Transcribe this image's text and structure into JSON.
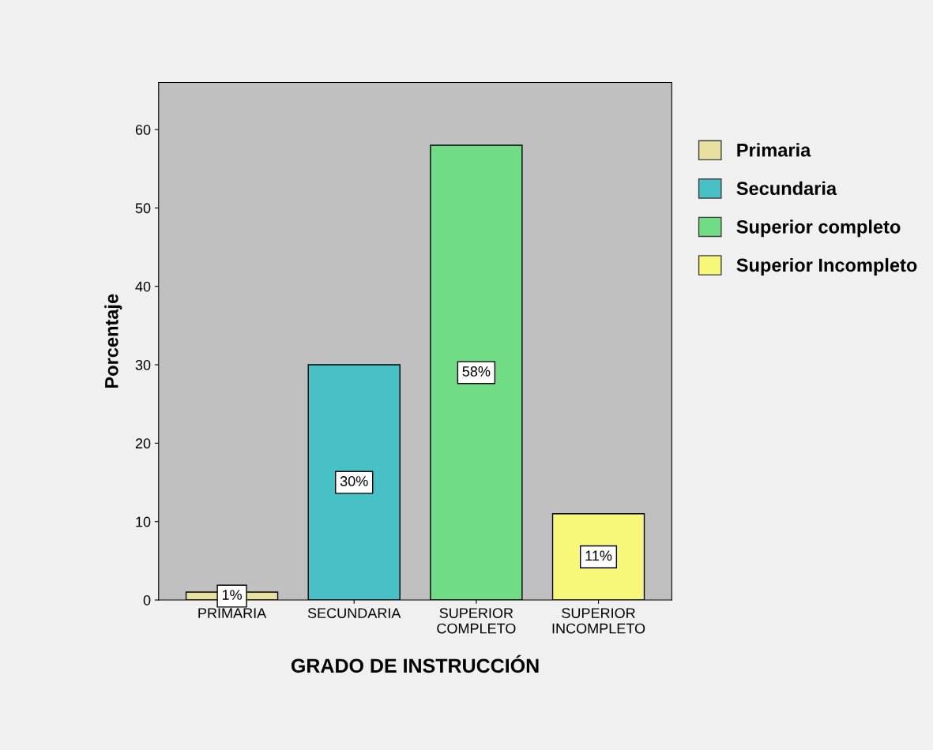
{
  "chart_data": {
    "type": "bar",
    "xlabel": "GRADO DE INSTRUCCIÓN",
    "ylabel": "Porcentaje",
    "categories": [
      "PRIMARIA",
      "SECUNDARIA",
      "SUPERIOR\nCOMPLETO",
      "SUPERIOR\nINCOMPLETO"
    ],
    "series": [
      {
        "name": "Primaria",
        "color": "#e8e0a0",
        "values": [
          1,
          null,
          null,
          null
        ],
        "value_labels": [
          "1%",
          null,
          null,
          null
        ]
      },
      {
        "name": "Secundaria",
        "color": "#47c1c6",
        "values": [
          null,
          30,
          null,
          null
        ],
        "value_labels": [
          null,
          "30%",
          null,
          null
        ]
      },
      {
        "name": "Superior completo",
        "color": "#70dc86",
        "values": [
          null,
          null,
          58,
          null
        ],
        "value_labels": [
          null,
          null,
          "58%",
          null
        ]
      },
      {
        "name": "Superior Incompleto",
        "color": "#f7f77a",
        "values": [
          null,
          null,
          null,
          11
        ],
        "value_labels": [
          null,
          null,
          null,
          "11%"
        ]
      }
    ],
    "ylim": [
      0,
      66
    ],
    "yticks": [
      0,
      10,
      20,
      30,
      40,
      50,
      60
    ],
    "grid": false,
    "legend": "top right"
  }
}
